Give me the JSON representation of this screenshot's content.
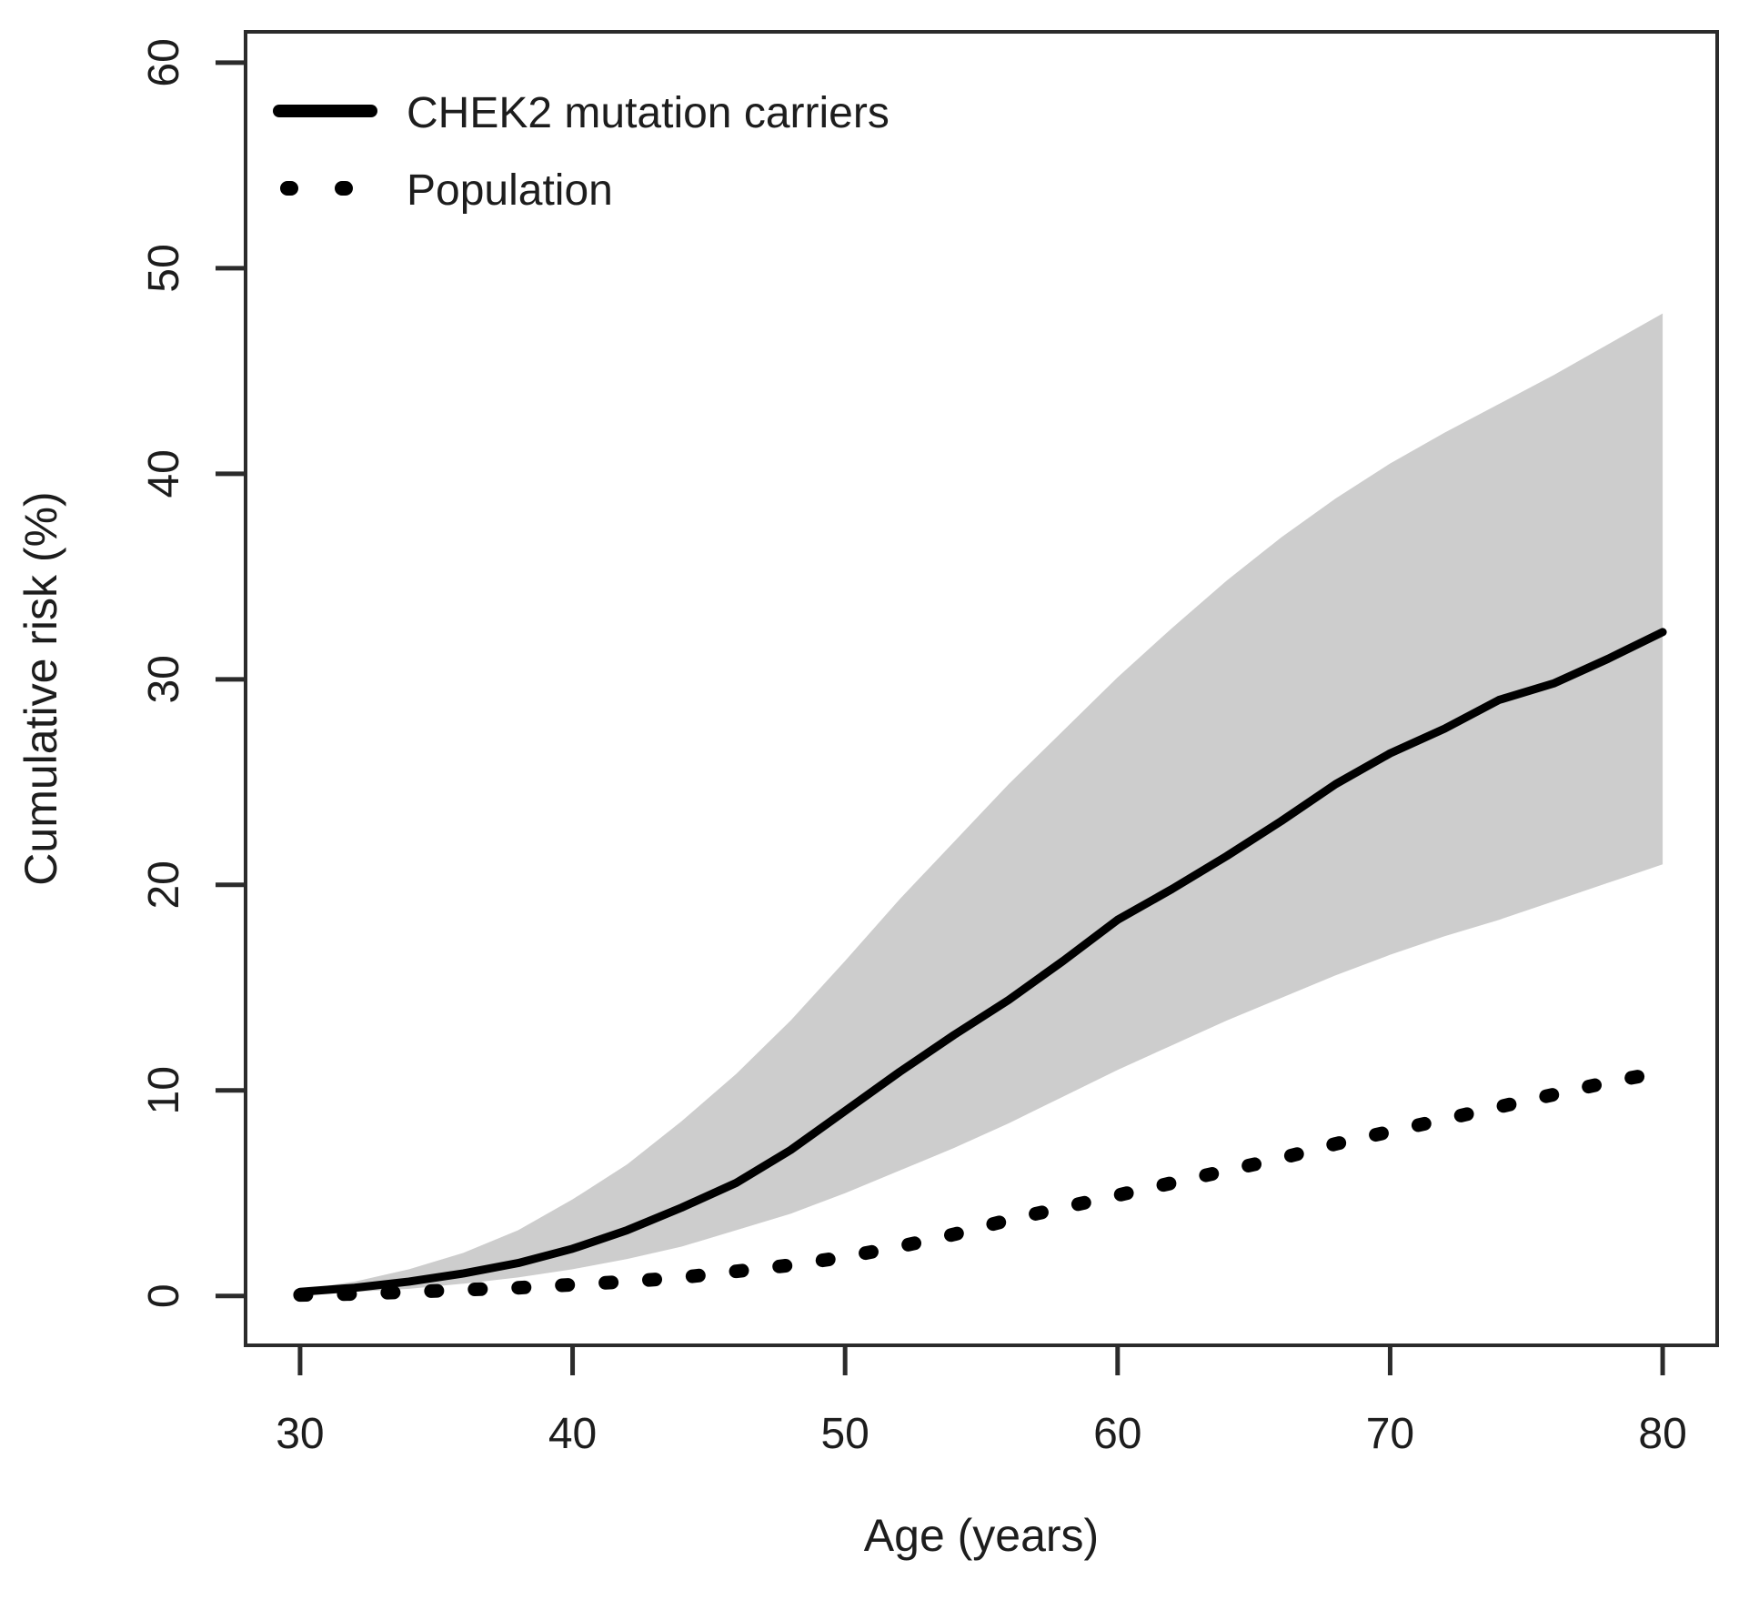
{
  "figure": {
    "background": "#ffffff",
    "axis_color": "#2b2b2b",
    "line_color": "#000000",
    "band_color": "#cdcdcd",
    "legend": {
      "items": [
        {
          "label": "CHEK2 mutation carriers",
          "style": "solid"
        },
        {
          "label": "Population",
          "style": "dotted"
        }
      ]
    }
  },
  "chart_data": {
    "type": "line",
    "title": "",
    "xlabel": "Age (years)",
    "ylabel": "Cumulative risk (%)",
    "xlim": [
      28,
      82
    ],
    "ylim": [
      -2.4,
      61.5
    ],
    "x_ticks": [
      30,
      40,
      50,
      60,
      70,
      80
    ],
    "y_ticks": [
      0,
      10,
      20,
      30,
      40,
      50,
      60
    ],
    "grid": false,
    "legend_position": "top-left",
    "x": [
      30,
      32,
      34,
      36,
      38,
      40,
      42,
      44,
      46,
      48,
      50,
      52,
      54,
      56,
      58,
      60,
      62,
      64,
      66,
      68,
      70,
      72,
      74,
      76,
      78,
      80
    ],
    "series": [
      {
        "name": "CHEK2 mutation carriers",
        "style": "solid",
        "values": [
          0.2,
          0.4,
          0.7,
          1.1,
          1.6,
          2.3,
          3.2,
          4.3,
          5.5,
          7.1,
          9.0,
          10.9,
          12.7,
          14.4,
          16.3,
          18.3,
          19.8,
          21.4,
          23.1,
          24.9,
          26.4,
          27.6,
          29.0,
          29.8,
          31.0,
          32.3
        ]
      },
      {
        "name": "Population",
        "style": "dotted",
        "values": [
          0.05,
          0.1,
          0.2,
          0.3,
          0.4,
          0.55,
          0.7,
          0.9,
          1.2,
          1.5,
          1.9,
          2.4,
          3.0,
          3.7,
          4.3,
          4.9,
          5.5,
          6.1,
          6.7,
          7.4,
          8.0,
          8.6,
          9.2,
          9.8,
          10.4,
          10.9
        ]
      },
      {
        "name": "95% CI upper (CHEK2)",
        "style": "band-upper",
        "values": [
          0.3,
          0.7,
          1.3,
          2.1,
          3.2,
          4.7,
          6.4,
          8.5,
          10.8,
          13.4,
          16.3,
          19.3,
          22.1,
          24.9,
          27.5,
          30.1,
          32.5,
          34.8,
          36.9,
          38.8,
          40.5,
          42.0,
          43.4,
          44.8,
          46.3,
          47.8
        ]
      },
      {
        "name": "95% CI lower (CHEK2)",
        "style": "band-lower",
        "values": [
          0.1,
          0.2,
          0.35,
          0.6,
          0.9,
          1.3,
          1.8,
          2.4,
          3.2,
          4.0,
          5.0,
          6.1,
          7.2,
          8.4,
          9.7,
          11.0,
          12.2,
          13.4,
          14.5,
          15.6,
          16.6,
          17.5,
          18.3,
          19.2,
          20.1,
          21.0
        ]
      }
    ]
  }
}
